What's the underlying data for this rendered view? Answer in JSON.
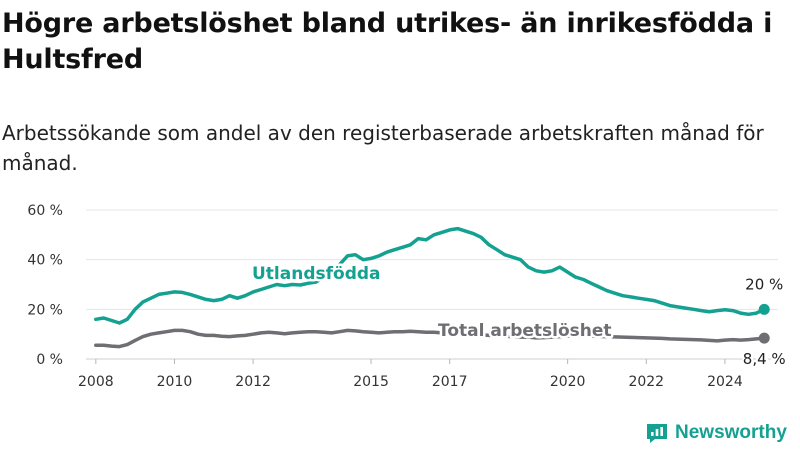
{
  "title": "Högre arbetslöshet bland utrikes- än inrikesfödda i Hultsfred",
  "subtitle": "Arbetssökande som andel av den registerbaserade arbetskraften månad för månad.",
  "brand": {
    "name": "Newsworthy",
    "color": "#14a191"
  },
  "chart_data": {
    "type": "line",
    "title": "Högre arbetslöshet bland utrikes- än inrikesfödda i Hultsfred",
    "subtitle": "Arbetssökande som andel av den registerbaserade arbetskraften månad för månad.",
    "xlabel": "",
    "ylabel": "",
    "xlim": [
      2007.75,
      2025.35
    ],
    "ylim": [
      0,
      60
    ],
    "x_ticks": [
      2008,
      2010,
      2012,
      2015,
      2017,
      2020,
      2022,
      2024
    ],
    "x_tick_labels": [
      "2008",
      "2010",
      "2012",
      "2015",
      "2017",
      "2020",
      "2022",
      "2024"
    ],
    "y_ticks": [
      0,
      20,
      40,
      60
    ],
    "y_tick_labels": [
      "0 %",
      "20 %",
      "40 %",
      "60 %"
    ],
    "grid": "horizontal",
    "legend": "inline labels",
    "series": [
      {
        "name": "Utlandsfödda",
        "color": "#14a191",
        "end_label": "20 %",
        "points": [
          [
            2008.0,
            16
          ],
          [
            2008.2,
            16.5
          ],
          [
            2008.4,
            15.5
          ],
          [
            2008.6,
            14.5
          ],
          [
            2008.8,
            16
          ],
          [
            2009.0,
            20
          ],
          [
            2009.2,
            23
          ],
          [
            2009.4,
            24.5
          ],
          [
            2009.6,
            26
          ],
          [
            2009.8,
            26.5
          ],
          [
            2010.0,
            27
          ],
          [
            2010.2,
            26.8
          ],
          [
            2010.4,
            26
          ],
          [
            2010.6,
            25
          ],
          [
            2010.8,
            24
          ],
          [
            2011.0,
            23.5
          ],
          [
            2011.2,
            24
          ],
          [
            2011.4,
            25.5
          ],
          [
            2011.6,
            24.5
          ],
          [
            2011.8,
            25.5
          ],
          [
            2012.0,
            27
          ],
          [
            2012.2,
            28
          ],
          [
            2012.4,
            29
          ],
          [
            2012.6,
            30
          ],
          [
            2012.8,
            29.5
          ],
          [
            2013.0,
            30
          ],
          [
            2013.2,
            29.8
          ],
          [
            2013.4,
            30.5
          ],
          [
            2013.6,
            31
          ],
          [
            2013.8,
            33
          ],
          [
            2014.0,
            35
          ],
          [
            2014.2,
            38
          ],
          [
            2014.4,
            41.5
          ],
          [
            2014.6,
            42
          ],
          [
            2014.8,
            40
          ],
          [
            2015.0,
            40.5
          ],
          [
            2015.2,
            41.5
          ],
          [
            2015.4,
            43
          ],
          [
            2015.6,
            44
          ],
          [
            2015.8,
            45
          ],
          [
            2016.0,
            46
          ],
          [
            2016.2,
            48.5
          ],
          [
            2016.4,
            48
          ],
          [
            2016.6,
            50
          ],
          [
            2016.8,
            51
          ],
          [
            2017.0,
            52
          ],
          [
            2017.2,
            52.5
          ],
          [
            2017.4,
            51.5
          ],
          [
            2017.6,
            50.5
          ],
          [
            2017.8,
            49
          ],
          [
            2018.0,
            46
          ],
          [
            2018.2,
            44
          ],
          [
            2018.4,
            42
          ],
          [
            2018.6,
            41
          ],
          [
            2018.8,
            40
          ],
          [
            2019.0,
            37
          ],
          [
            2019.2,
            35.5
          ],
          [
            2019.4,
            35
          ],
          [
            2019.6,
            35.5
          ],
          [
            2019.8,
            37
          ],
          [
            2020.0,
            35
          ],
          [
            2020.2,
            33
          ],
          [
            2020.4,
            32
          ],
          [
            2020.6,
            30.5
          ],
          [
            2020.8,
            29
          ],
          [
            2021.0,
            27.5
          ],
          [
            2021.2,
            26.5
          ],
          [
            2021.4,
            25.5
          ],
          [
            2021.6,
            25
          ],
          [
            2021.8,
            24.5
          ],
          [
            2022.0,
            24
          ],
          [
            2022.2,
            23.5
          ],
          [
            2022.4,
            22.5
          ],
          [
            2022.6,
            21.5
          ],
          [
            2022.8,
            21
          ],
          [
            2023.0,
            20.5
          ],
          [
            2023.2,
            20
          ],
          [
            2023.4,
            19.5
          ],
          [
            2023.6,
            19
          ],
          [
            2023.8,
            19.5
          ],
          [
            2024.0,
            19.8
          ],
          [
            2024.2,
            19.5
          ],
          [
            2024.4,
            18.5
          ],
          [
            2024.6,
            18
          ],
          [
            2024.8,
            18.5
          ],
          [
            2025.0,
            20
          ]
        ]
      },
      {
        "name": "Total arbetslöshet",
        "color": "#6e6e73",
        "end_label": "8,4 %",
        "points": [
          [
            2008.0,
            5.5
          ],
          [
            2008.2,
            5.5
          ],
          [
            2008.4,
            5.2
          ],
          [
            2008.6,
            5
          ],
          [
            2008.8,
            5.8
          ],
          [
            2009.0,
            7.5
          ],
          [
            2009.2,
            9
          ],
          [
            2009.4,
            10
          ],
          [
            2009.6,
            10.5
          ],
          [
            2009.8,
            11
          ],
          [
            2010.0,
            11.5
          ],
          [
            2010.2,
            11.5
          ],
          [
            2010.4,
            11
          ],
          [
            2010.6,
            10
          ],
          [
            2010.8,
            9.5
          ],
          [
            2011.0,
            9.5
          ],
          [
            2011.2,
            9.2
          ],
          [
            2011.4,
            9
          ],
          [
            2011.6,
            9.3
          ],
          [
            2011.8,
            9.5
          ],
          [
            2012.0,
            10
          ],
          [
            2012.2,
            10.5
          ],
          [
            2012.4,
            10.8
          ],
          [
            2012.6,
            10.5
          ],
          [
            2012.8,
            10.2
          ],
          [
            2013.0,
            10.5
          ],
          [
            2013.2,
            10.8
          ],
          [
            2013.4,
            11
          ],
          [
            2013.6,
            11
          ],
          [
            2013.8,
            10.8
          ],
          [
            2014.0,
            10.5
          ],
          [
            2014.2,
            11
          ],
          [
            2014.4,
            11.5
          ],
          [
            2014.6,
            11.3
          ],
          [
            2014.8,
            11
          ],
          [
            2015.0,
            10.8
          ],
          [
            2015.2,
            10.5
          ],
          [
            2015.4,
            10.8
          ],
          [
            2015.6,
            11
          ],
          [
            2015.8,
            11
          ],
          [
            2016.0,
            11.2
          ],
          [
            2016.2,
            11
          ],
          [
            2016.4,
            10.8
          ],
          [
            2016.6,
            10.8
          ],
          [
            2016.8,
            10.5
          ],
          [
            2017.0,
            10.3
          ],
          [
            2017.2,
            10.2
          ],
          [
            2017.4,
            10
          ],
          [
            2017.6,
            10
          ],
          [
            2017.8,
            9.8
          ],
          [
            2018.0,
            9.5
          ],
          [
            2018.2,
            9.3
          ],
          [
            2018.4,
            9.2
          ],
          [
            2018.6,
            9
          ],
          [
            2018.8,
            8.8
          ],
          [
            2019.0,
            8.8
          ],
          [
            2019.2,
            8.5
          ],
          [
            2019.4,
            8.6
          ],
          [
            2019.6,
            8.8
          ],
          [
            2019.8,
            9
          ],
          [
            2020.0,
            9.2
          ],
          [
            2020.2,
            9.3
          ],
          [
            2020.4,
            9.3
          ],
          [
            2020.6,
            9.2
          ],
          [
            2020.8,
            9.1
          ],
          [
            2021.0,
            9
          ],
          [
            2021.2,
            8.9
          ],
          [
            2021.4,
            8.8
          ],
          [
            2021.6,
            8.7
          ],
          [
            2021.8,
            8.6
          ],
          [
            2022.0,
            8.5
          ],
          [
            2022.2,
            8.4
          ],
          [
            2022.4,
            8.3
          ],
          [
            2022.6,
            8.1
          ],
          [
            2022.8,
            8
          ],
          [
            2023.0,
            7.9
          ],
          [
            2023.2,
            7.8
          ],
          [
            2023.4,
            7.7
          ],
          [
            2023.6,
            7.5
          ],
          [
            2023.8,
            7.3
          ],
          [
            2024.0,
            7.6
          ],
          [
            2024.2,
            7.8
          ],
          [
            2024.4,
            7.6
          ],
          [
            2024.6,
            7.8
          ],
          [
            2024.8,
            8.1
          ],
          [
            2025.0,
            8.4
          ]
        ]
      }
    ]
  }
}
